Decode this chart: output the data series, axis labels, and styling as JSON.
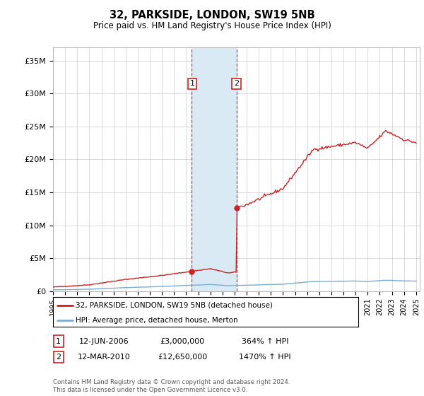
{
  "title": "32, PARKSIDE, LONDON, SW19 5NB",
  "subtitle": "Price paid vs. HM Land Registry's House Price Index (HPI)",
  "legend_line1": "32, PARKSIDE, LONDON, SW19 5NB (detached house)",
  "legend_line2": "HPI: Average price, detached house, Merton",
  "transaction1_date": "12-JUN-2006",
  "transaction1_price": "£3,000,000",
  "transaction1_hpi": "364% ↑ HPI",
  "transaction2_date": "12-MAR-2010",
  "transaction2_price": "£12,650,000",
  "transaction2_hpi": "1470% ↑ HPI",
  "footer": "Contains HM Land Registry data © Crown copyright and database right 2024.\nThis data is licensed under the Open Government Licence v3.0.",
  "hpi_color": "#7aadd4",
  "price_color": "#cc2222",
  "shading_color": "#daeaf5",
  "ylim_max": 37000000,
  "transaction1_x": 2006.45,
  "transaction2_x": 2010.19,
  "transaction1_y": 3000000,
  "transaction2_y": 12650000,
  "xmin": 1995,
  "xmax": 2025,
  "yticks": [
    0,
    5000000,
    10000000,
    15000000,
    20000000,
    25000000,
    30000000,
    35000000
  ],
  "ylabels": [
    "£0",
    "£5M",
    "£10M",
    "£15M",
    "£20M",
    "£25M",
    "£30M",
    "£35M"
  ]
}
